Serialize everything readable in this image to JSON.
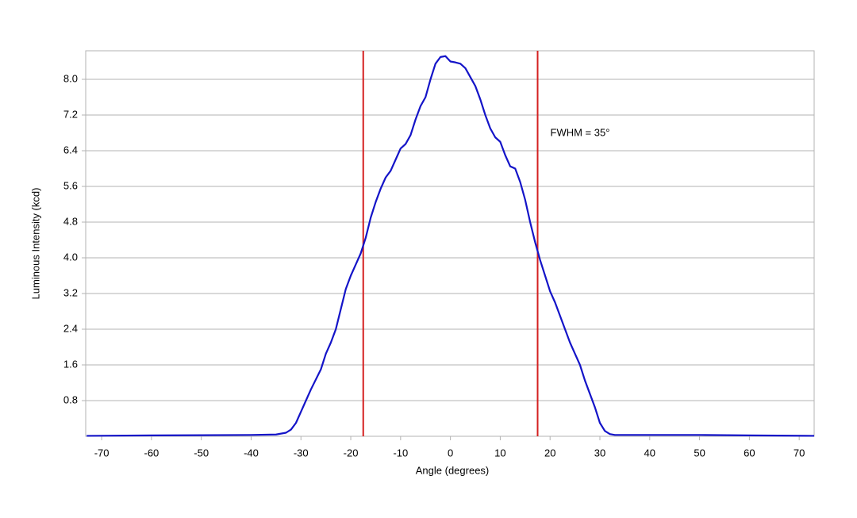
{
  "chart_data": {
    "type": "line",
    "x_label": "Angle (degrees)",
    "y_label": "Luminous Intensity (kcd)",
    "x": [
      -73,
      -60,
      -40,
      -35,
      -33,
      -32,
      -31,
      -30,
      -29,
      -28,
      -26,
      -25,
      -24,
      -23,
      -22,
      -21,
      -20,
      -19,
      -18,
      -17,
      -16,
      -15,
      -14,
      -13,
      -12,
      -11,
      -10,
      -9,
      -8,
      -7,
      -6,
      -5,
      -4,
      -3,
      -2,
      -1,
      0,
      1,
      2,
      3,
      4,
      5,
      6,
      7,
      8,
      9,
      10,
      11,
      12,
      13,
      14,
      15,
      16,
      17,
      18,
      19,
      20,
      21,
      22,
      23,
      24,
      25,
      26,
      27,
      28,
      29,
      30,
      31,
      32,
      33,
      40,
      50,
      60,
      73
    ],
    "values": [
      0.01,
      0.02,
      0.03,
      0.04,
      0.08,
      0.15,
      0.3,
      0.55,
      0.8,
      1.05,
      1.5,
      1.85,
      2.1,
      2.4,
      2.85,
      3.3,
      3.6,
      3.85,
      4.1,
      4.45,
      4.9,
      5.25,
      5.55,
      5.8,
      5.95,
      6.2,
      6.45,
      6.55,
      6.75,
      7.1,
      7.4,
      7.6,
      8.0,
      8.35,
      8.5,
      8.52,
      8.4,
      8.38,
      8.35,
      8.25,
      8.05,
      7.85,
      7.55,
      7.2,
      6.9,
      6.7,
      6.6,
      6.3,
      6.05,
      6.0,
      5.7,
      5.3,
      4.8,
      4.35,
      3.95,
      3.6,
      3.25,
      3.0,
      2.7,
      2.4,
      2.1,
      1.85,
      1.6,
      1.25,
      0.95,
      0.65,
      0.3,
      0.12,
      0.05,
      0.03,
      0.03,
      0.03,
      0.02,
      0.01
    ],
    "color": "#1414c8",
    "vlines": [
      -17.5,
      17.5
    ],
    "vline_color": "#d42020",
    "annotation": "FWHM = 35°",
    "xlim": [
      -73.2,
      73
    ],
    "ylim": [
      0,
      8.64
    ],
    "xticks": [
      -70,
      -60,
      -50,
      -40,
      -30,
      -20,
      -10,
      0,
      10,
      20,
      30,
      40,
      50,
      60,
      70
    ],
    "yticks": [
      0.8,
      1.6,
      2.4,
      3.2,
      {
        "value": 4,
        "label": "4.0"
      },
      4.8,
      5.6,
      6.4,
      7.2,
      {
        "value": 8,
        "label": "8.0"
      }
    ],
    "grid": true
  }
}
